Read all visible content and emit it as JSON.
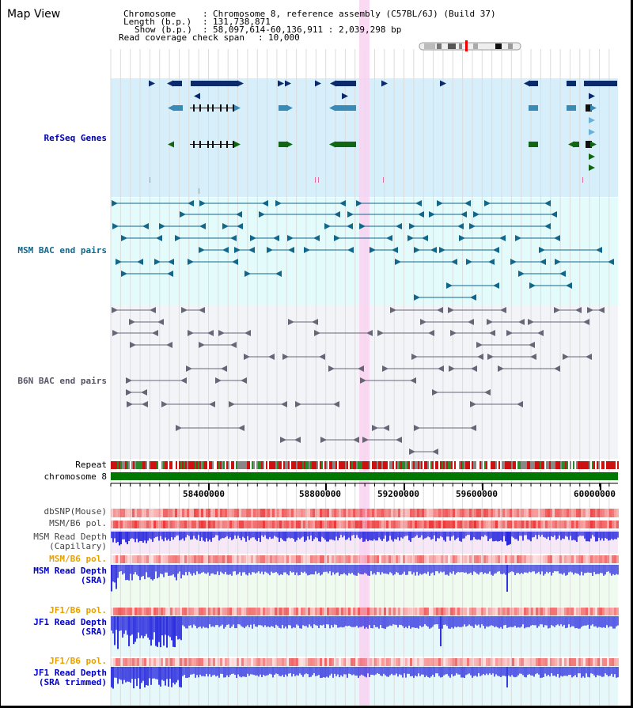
{
  "app": {
    "title": "Map View"
  },
  "header": {
    "chromosome_key": "Chromosome",
    "chromosome_val": "Chromosome 8, reference assembly (C57BL/6J) (Build 37)",
    "length_key": "Length (b.p.)",
    "length_val": "131,738,871",
    "show_key": "Show (b.p.)",
    "show_val": "58,097,614-60,136,911 : 2,039,298 bp",
    "coverage_key": "Read coverage check span",
    "coverage_val": "10,000",
    "separator": ":"
  },
  "tracks": {
    "refseq": "RefSeq Genes",
    "msm_bac": "MSM BAC end pairs",
    "b6n_bac": "B6N BAC end pairs",
    "repeat": "Repeat",
    "chromosome": "chromosome 8",
    "dbsnp": "dbSNP(Mouse)",
    "msm_b6_pol_1": "MSM/B6 pol.",
    "msm_depth_cap": "MSM Read Depth\n(Capillary)",
    "msm_b6_pol_2": "MSM/B6 pol.",
    "msm_depth_sra": "MSM Read Depth\n(SRA)",
    "jf1_b6_pol_1": "JF1/B6 pol.",
    "jf1_depth_sra": "JF1 Read Depth\n(SRA)",
    "jf1_b6_pol_2": "JF1/B6 pol.",
    "jf1_depth_trim": "JF1 Read Depth\n(SRA trimmed)"
  },
  "axis": {
    "start": 58097614,
    "end": 60136911,
    "ticks": [
      "58400000",
      "58800000",
      "59200000",
      "59600000",
      "60000000"
    ]
  },
  "colors": {
    "refseq_bg": "#d6effa",
    "msm_bg": "#e4fbfc",
    "b6n_bg": "#f3f4f8",
    "highlight": "#f9d2f1",
    "refseq_label": "#0000aa",
    "msm_label": "#11668a",
    "b6n_label": "#555566",
    "pol_label": "#e6a100",
    "depth_label": "#0000cc",
    "chrom_bar": "#007700",
    "depth_blue": "#1a1adc"
  }
}
